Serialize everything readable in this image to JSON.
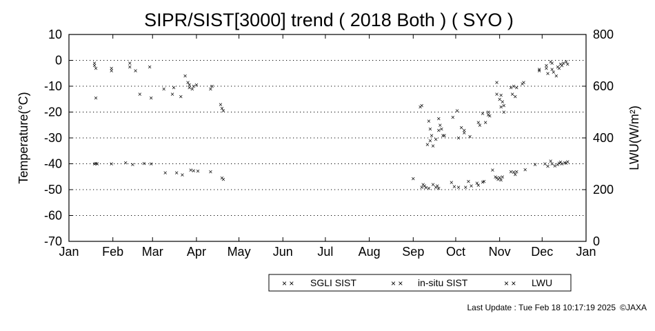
{
  "chart_data": {
    "type": "scatter",
    "title": "SIPR/SIST[3000] trend ( 2018 Both ) ( SYO )",
    "ylabel": "Temperature(°C)",
    "y2label": "LWU(W/m²)",
    "x_ticks": [
      "Jan",
      "Feb",
      "Mar",
      "Apr",
      "May",
      "Jun",
      "Jul",
      "Aug",
      "Sep",
      "Oct",
      "Nov",
      "Dec",
      "Jan"
    ],
    "y_ticks": [
      "10",
      "0",
      "-10",
      "-20",
      "-30",
      "-40",
      "-50",
      "-60",
      "-70"
    ],
    "y2_ticks": [
      "800",
      "600",
      "400",
      "200",
      "0"
    ],
    "ylim": [
      -70,
      10
    ],
    "y2lim": [
      0,
      800
    ],
    "xlim_day_of_year": [
      1,
      366
    ],
    "grid": "horizontal dotted",
    "legend_position": "bottom-right",
    "marker": "×",
    "series": [
      {
        "name": "SGLI SIST",
        "color": "#f5a300",
        "axis": "left",
        "points": [
          {
            "doy": 19,
            "y": -1
          },
          {
            "doy": 20,
            "y": -14.5
          },
          {
            "doy": 31,
            "y": -4
          },
          {
            "doy": 44,
            "y": -1
          },
          {
            "doy": 51,
            "y": -13
          },
          {
            "doy": 59,
            "y": -14.5
          },
          {
            "doy": 74,
            "y": -13
          },
          {
            "doy": 83,
            "y": -6
          },
          {
            "doy": 86,
            "y": -10.5
          },
          {
            "doy": 88,
            "y": -11
          },
          {
            "doy": 101,
            "y": -11
          },
          {
            "doy": 250,
            "y": -17.5
          },
          {
            "doy": 254,
            "y": -32.5
          },
          {
            "doy": 256,
            "y": -31
          },
          {
            "doy": 258,
            "y": -33
          },
          {
            "doy": 262,
            "y": -27
          },
          {
            "doy": 265,
            "y": -29
          },
          {
            "doy": 272,
            "y": -22
          },
          {
            "doy": 276,
            "y": -30
          },
          {
            "doy": 280,
            "y": -28
          },
          {
            "doy": 284,
            "y": -29.5
          },
          {
            "doy": 290,
            "y": -24
          },
          {
            "doy": 297,
            "y": -21
          },
          {
            "doy": 303,
            "y": -13
          },
          {
            "doy": 306,
            "y": -18
          },
          {
            "doy": 308,
            "y": -20
          },
          {
            "doy": 321,
            "y": -9
          },
          {
            "doy": 333,
            "y": -4
          },
          {
            "doy": 338,
            "y": -3
          },
          {
            "doy": 342,
            "y": -1
          }
        ]
      },
      {
        "name": "in-situ SIST",
        "color": "#e8000b",
        "axis": "left",
        "points": [
          {
            "doy": 19,
            "y": -2
          },
          {
            "doy": 20,
            "y": -3
          },
          {
            "doy": 31,
            "y": -3
          },
          {
            "doy": 44,
            "y": -2.5
          },
          {
            "doy": 48,
            "y": -4
          },
          {
            "doy": 58,
            "y": -2.5
          },
          {
            "doy": 68,
            "y": -11
          },
          {
            "doy": 75,
            "y": -10.5
          },
          {
            "doy": 80,
            "y": -14
          },
          {
            "doy": 85,
            "y": -8.5
          },
          {
            "doy": 86,
            "y": -9.5
          },
          {
            "doy": 89,
            "y": -10
          },
          {
            "doy": 91,
            "y": -9.5
          },
          {
            "doy": 102,
            "y": -10
          },
          {
            "doy": 108,
            "y": -17
          },
          {
            "doy": 109,
            "y": -18.5
          },
          {
            "doy": 110,
            "y": -19.5
          },
          {
            "doy": 249,
            "y": -18
          },
          {
            "doy": 255,
            "y": -23.5
          },
          {
            "doy": 256,
            "y": -26.5
          },
          {
            "doy": 257,
            "y": -29
          },
          {
            "doy": 260,
            "y": -30.5
          },
          {
            "doy": 262,
            "y": -22.5
          },
          {
            "doy": 263,
            "y": -25
          },
          {
            "doy": 264,
            "y": -26.5
          },
          {
            "doy": 266,
            "y": -29
          },
          {
            "doy": 275,
            "y": -19.5
          },
          {
            "doy": 278,
            "y": -26
          },
          {
            "doy": 280,
            "y": -27
          },
          {
            "doy": 291,
            "y": -25
          },
          {
            "doy": 293,
            "y": -20.5
          },
          {
            "doy": 295,
            "y": -24
          },
          {
            "doy": 297,
            "y": -20
          },
          {
            "doy": 298,
            "y": -21.5
          },
          {
            "doy": 303,
            "y": -8.5
          },
          {
            "doy": 305,
            "y": -15
          },
          {
            "doy": 306,
            "y": -13.5
          },
          {
            "doy": 307,
            "y": -16
          },
          {
            "doy": 308,
            "y": -17.5
          },
          {
            "doy": 313,
            "y": -10.5
          },
          {
            "doy": 314,
            "y": -13
          },
          {
            "doy": 315,
            "y": -10
          },
          {
            "doy": 316,
            "y": -14
          },
          {
            "doy": 317,
            "y": -10.5
          },
          {
            "doy": 322,
            "y": -8.5
          },
          {
            "doy": 333,
            "y": -3.5
          },
          {
            "doy": 338,
            "y": -2
          },
          {
            "doy": 339,
            "y": -5
          },
          {
            "doy": 341,
            "y": -0.5
          },
          {
            "doy": 342,
            "y": -3.5
          },
          {
            "doy": 343,
            "y": -4.5
          },
          {
            "doy": 345,
            "y": -6
          },
          {
            "doy": 346,
            "y": -2.5
          },
          {
            "doy": 347,
            "y": -3
          },
          {
            "doy": 348,
            "y": -1.5
          },
          {
            "doy": 349,
            "y": -2
          },
          {
            "doy": 350,
            "y": -1
          },
          {
            "doy": 352,
            "y": -0.5
          },
          {
            "doy": 353,
            "y": -1.5
          }
        ]
      },
      {
        "name": "LWU",
        "color": "#0000e6",
        "axis": "right",
        "points": [
          {
            "doy": 19,
            "y": 300
          },
          {
            "doy": 20,
            "y": 301
          },
          {
            "doy": 21,
            "y": 300
          },
          {
            "doy": 31,
            "y": 300
          },
          {
            "doy": 41,
            "y": 304
          },
          {
            "doy": 46,
            "y": 298
          },
          {
            "doy": 54,
            "y": 301
          },
          {
            "doy": 59,
            "y": 300
          },
          {
            "doy": 69,
            "y": 265
          },
          {
            "doy": 77,
            "y": 265
          },
          {
            "doy": 81,
            "y": 258
          },
          {
            "doy": 87,
            "y": 276
          },
          {
            "doy": 89,
            "y": 273
          },
          {
            "doy": 92,
            "y": 272
          },
          {
            "doy": 101,
            "y": 270
          },
          {
            "doy": 109,
            "y": 245
          },
          {
            "doy": 110,
            "y": 240
          },
          {
            "doy": 244,
            "y": 243
          },
          {
            "doy": 250,
            "y": 210
          },
          {
            "doy": 251,
            "y": 220
          },
          {
            "doy": 252,
            "y": 215
          },
          {
            "doy": 253,
            "y": 208
          },
          {
            "doy": 255,
            "y": 205
          },
          {
            "doy": 258,
            "y": 220
          },
          {
            "doy": 260,
            "y": 210
          },
          {
            "doy": 261,
            "y": 215
          },
          {
            "doy": 262,
            "y": 205
          },
          {
            "doy": 271,
            "y": 228
          },
          {
            "doy": 273,
            "y": 212
          },
          {
            "doy": 276,
            "y": 210
          },
          {
            "doy": 281,
            "y": 210
          },
          {
            "doy": 283,
            "y": 232
          },
          {
            "doy": 285,
            "y": 215
          },
          {
            "doy": 289,
            "y": 226
          },
          {
            "doy": 290,
            "y": 218
          },
          {
            "doy": 293,
            "y": 229
          },
          {
            "doy": 294,
            "y": 232
          },
          {
            "doy": 300,
            "y": 276
          },
          {
            "doy": 302,
            "y": 250
          },
          {
            "doy": 303,
            "y": 245
          },
          {
            "doy": 304,
            "y": 240
          },
          {
            "doy": 305,
            "y": 247
          },
          {
            "doy": 306,
            "y": 238
          },
          {
            "doy": 307,
            "y": 250
          },
          {
            "doy": 313,
            "y": 270
          },
          {
            "doy": 315,
            "y": 268
          },
          {
            "doy": 316,
            "y": 259
          },
          {
            "doy": 317,
            "y": 270
          },
          {
            "doy": 323,
            "y": 277
          },
          {
            "doy": 330,
            "y": 298
          },
          {
            "doy": 337,
            "y": 300
          },
          {
            "doy": 339,
            "y": 291
          },
          {
            "doy": 341,
            "y": 311
          },
          {
            "doy": 342,
            "y": 300
          },
          {
            "doy": 344,
            "y": 292
          },
          {
            "doy": 346,
            "y": 298
          },
          {
            "doy": 347,
            "y": 303
          },
          {
            "doy": 348,
            "y": 307
          },
          {
            "doy": 349,
            "y": 300
          },
          {
            "doy": 351,
            "y": 304
          },
          {
            "doy": 352,
            "y": 303
          },
          {
            "doy": 353,
            "y": 308
          }
        ]
      }
    ]
  },
  "legend": {
    "items": [
      {
        "label": "SGLI SIST",
        "color": "#f5a300"
      },
      {
        "label": "in-situ SIST",
        "color": "#e8000b"
      },
      {
        "label": "LWU",
        "color": "#0000e6"
      }
    ]
  },
  "footer": {
    "last_update": "Last Update : Tue Feb 18 10:17:19 2025",
    "credit": "©JAXA"
  }
}
